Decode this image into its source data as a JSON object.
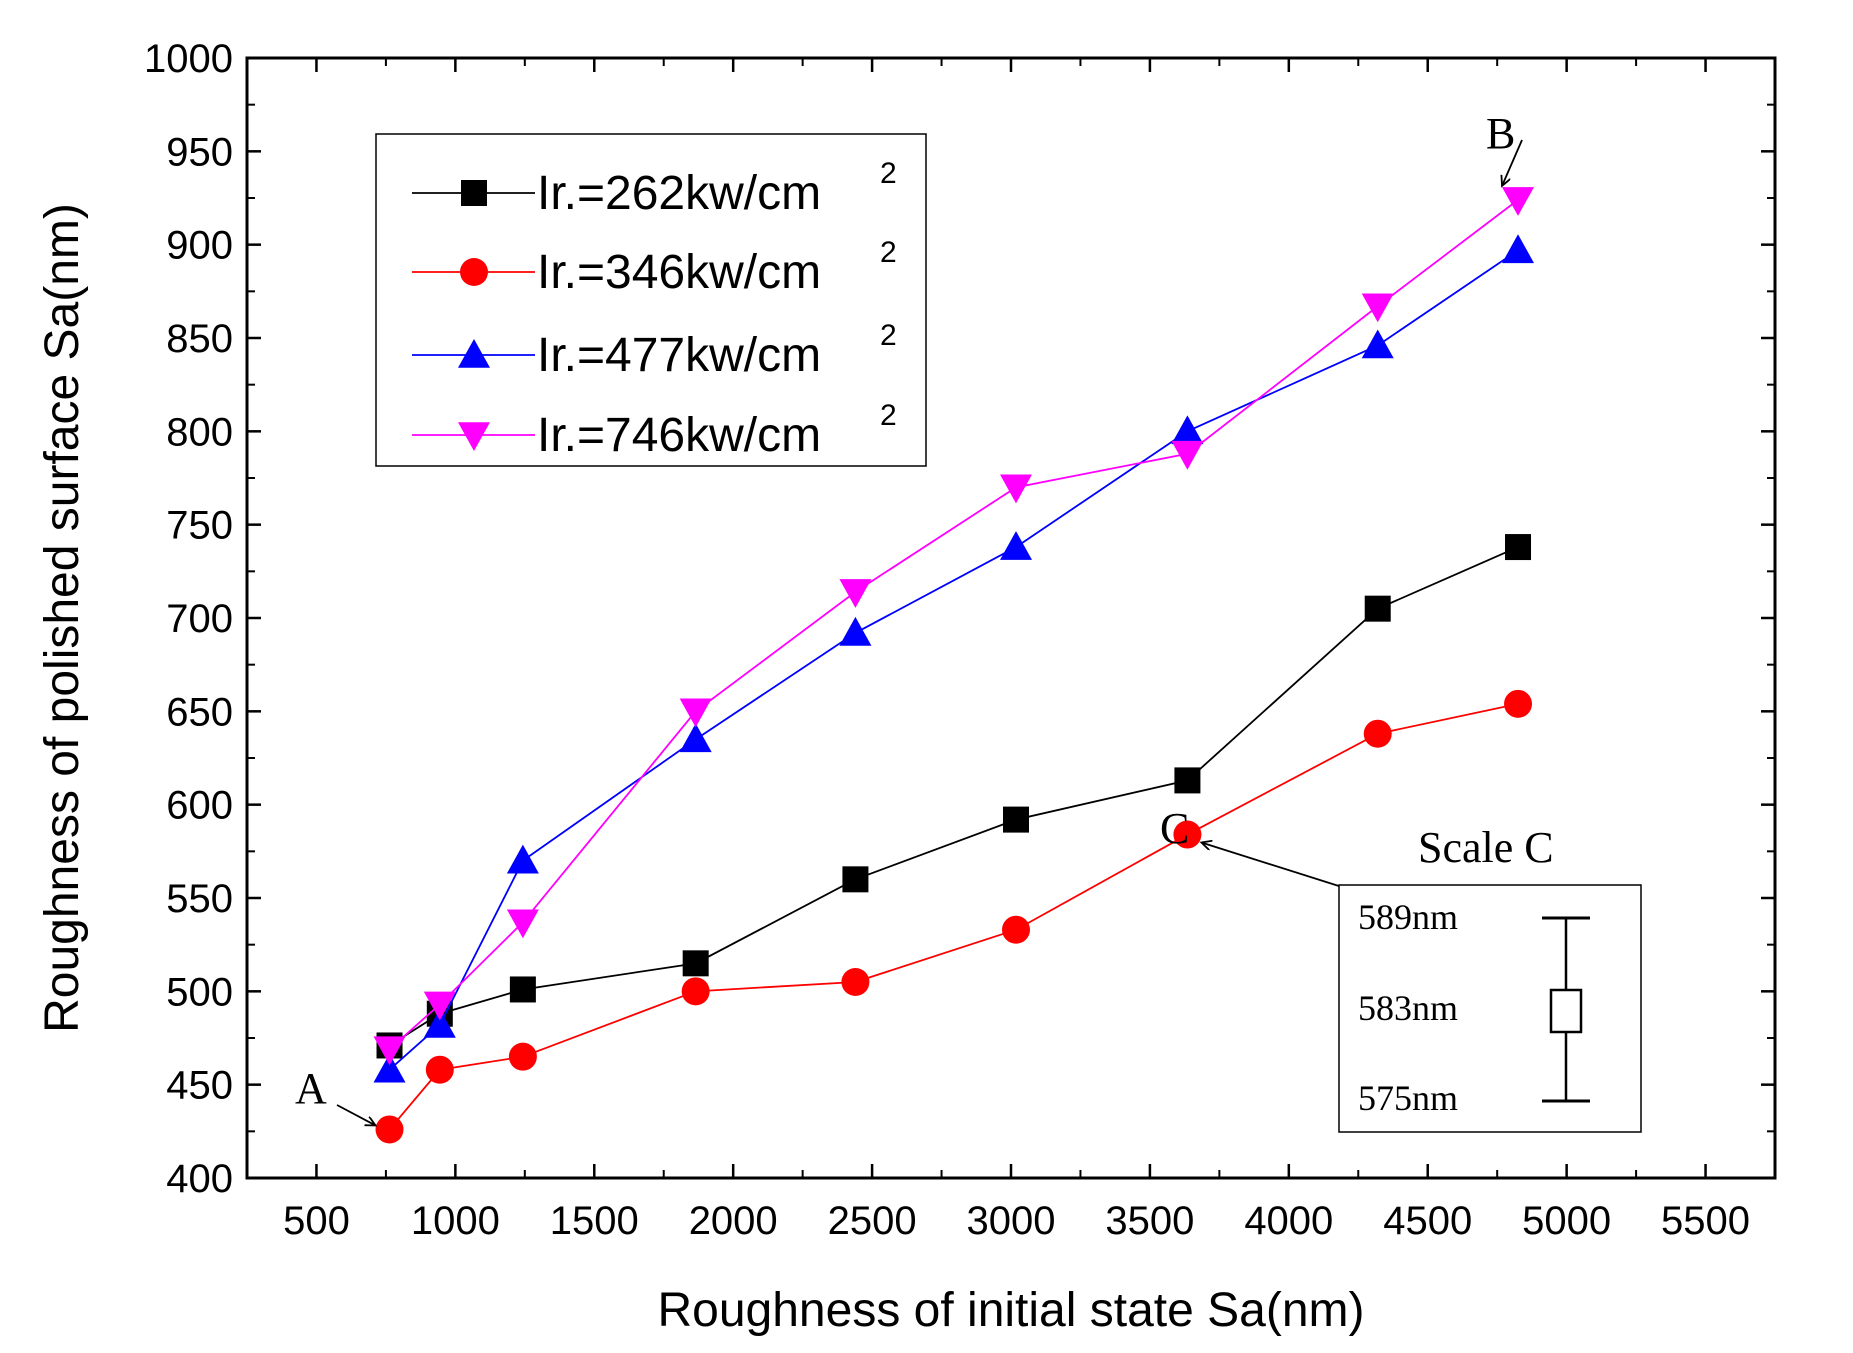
{
  "chart_data": {
    "type": "line",
    "title": "",
    "xlabel": "Roughness of initial state Sa(nm)",
    "ylabel": "Roughness of  polished surface Sa(nm)",
    "xlim": [
      250,
      5750
    ],
    "ylim": [
      400,
      1000
    ],
    "xticks": [
      500,
      1000,
      1500,
      2000,
      2500,
      3000,
      3500,
      4000,
      4500,
      5000,
      5500
    ],
    "yticks": [
      400,
      450,
      500,
      550,
      600,
      650,
      700,
      750,
      800,
      850,
      900,
      950,
      1000
    ],
    "x": [
      763,
      944,
      1243,
      1865,
      2440,
      3018,
      3635,
      4320,
      4825
    ],
    "legend_position": "top-left",
    "series": [
      {
        "name": "Ir.=262kw/cm",
        "sup": "2",
        "color": "#000000",
        "marker": "square",
        "values": [
          471,
          488,
          501,
          515,
          560,
          592,
          613,
          705,
          738
        ]
      },
      {
        "name": "Ir.=346kw/cm",
        "sup": "2",
        "color": "#ff0000",
        "marker": "circle",
        "values": [
          426,
          458,
          465,
          500,
          505,
          533,
          584,
          638,
          654
        ]
      },
      {
        "name": "Ir.=477kw/cm",
        "sup": "2",
        "color": "#0000ff",
        "marker": "triangle-up",
        "values": [
          458,
          482,
          570,
          635,
          692,
          738,
          800,
          846,
          897
        ]
      },
      {
        "name": "Ir.=746kw/cm",
        "sup": "2",
        "color": "#ff00ff",
        "marker": "triangle-down",
        "values": [
          469,
          493,
          537,
          650,
          714,
          770,
          788,
          867,
          924
        ]
      }
    ],
    "annotations": [
      {
        "label": "A",
        "x": 763,
        "y": 426
      },
      {
        "label": "B",
        "x": 4825,
        "y": 924
      },
      {
        "label": "C",
        "x": 3635,
        "y": 584
      }
    ],
    "inset": {
      "title": "Scale C",
      "upper_label": "589nm",
      "mid_label": "583nm",
      "lower_label": "575nm"
    }
  }
}
